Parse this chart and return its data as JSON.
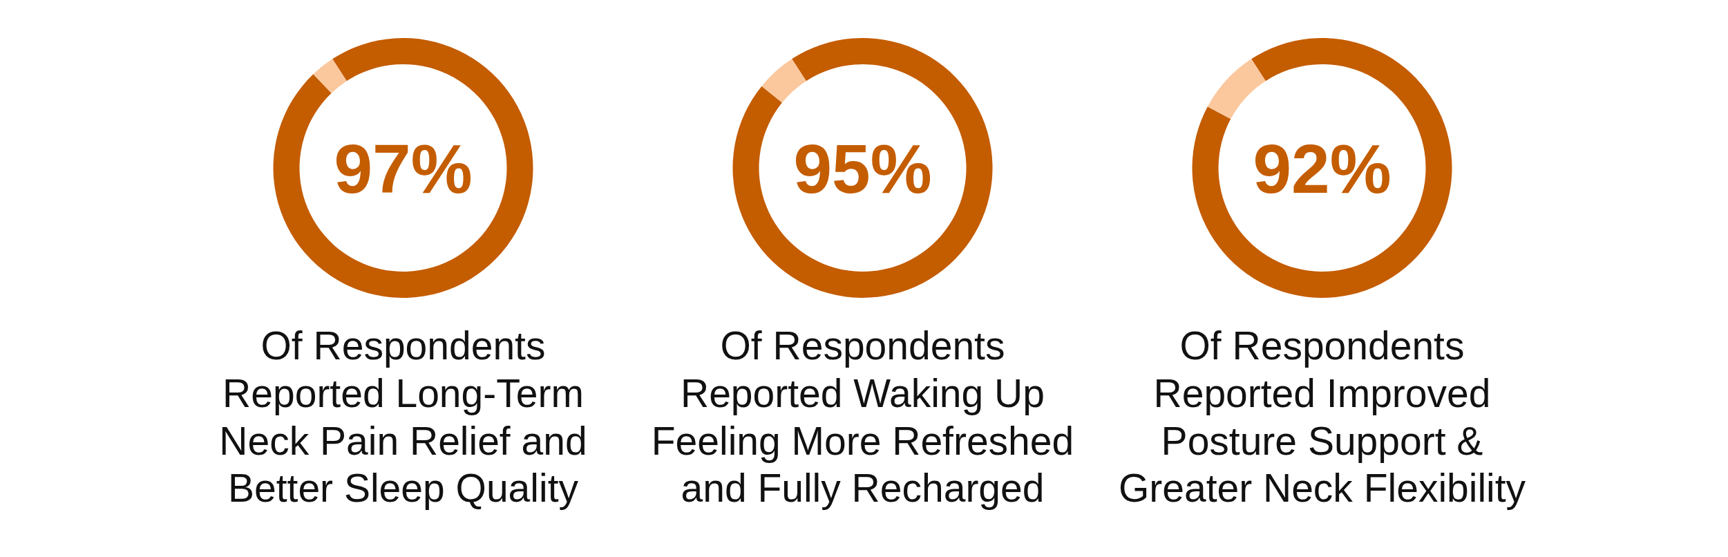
{
  "chart_data": [
    {
      "type": "donut",
      "categories": [
        null,
        null
      ],
      "values": [
        97,
        3
      ],
      "colors": [
        "#c45c00",
        "#fbc79d"
      ],
      "value_labels": [
        "97%",
        null
      ],
      "annotations": [
        "Of Respondents\nReported Long-Term\nNeck Pain Relief and\nBetter Sleep Quality"
      ]
    },
    {
      "type": "donut",
      "categories": [
        null,
        null
      ],
      "values": [
        95,
        5
      ],
      "colors": [
        "#c45c00",
        "#fbc79d"
      ],
      "value_labels": [
        "95%",
        null
      ],
      "annotations": [
        "Of Respondents\nReported Waking Up\nFeeling More Refreshed\nand Fully Recharged"
      ]
    },
    {
      "type": "donut",
      "categories": [
        null,
        null
      ],
      "values": [
        92,
        8
      ],
      "colors": [
        "#c45c00",
        "#fbc79d"
      ],
      "value_labels": [
        "92%",
        null
      ],
      "annotations": [
        "Of Respondents\nReported Improved\nPosture Support &\nGreater Neck Flexibility"
      ]
    }
  ]
}
